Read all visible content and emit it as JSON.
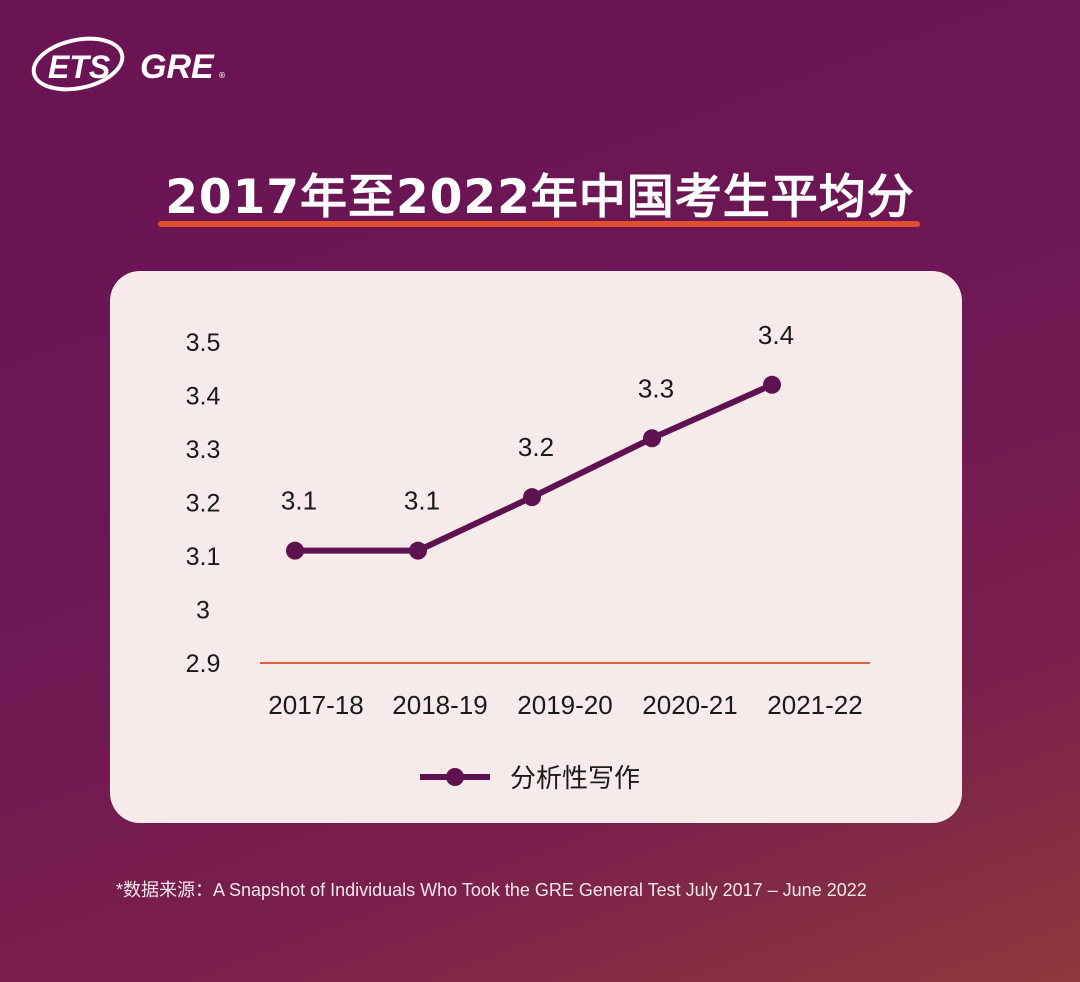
{
  "logo": {
    "brand": "ETS",
    "product": "GRE"
  },
  "title": "2017年至2022年中国考生平均分",
  "colors": {
    "line": "#5e1250",
    "baseline": "#e0603a",
    "underline": "#e0502e",
    "card": "#f6eaea"
  },
  "chart_data": {
    "type": "line",
    "title": "",
    "categories": [
      "2017-18",
      "2018-19",
      "2019-20",
      "2020-21",
      "2021-22"
    ],
    "series": [
      {
        "name": "分析性写作",
        "values": [
          3.11,
          3.11,
          3.21,
          3.32,
          3.42
        ],
        "labels": [
          "3.1",
          "3.1",
          "3.2",
          "3.3",
          "3.4"
        ]
      }
    ],
    "yticks": [
      "2.9",
      "3",
      "3.1",
      "3.2",
      "3.3",
      "3.4",
      "3.5"
    ],
    "ylim": [
      2.9,
      3.5
    ],
    "grid": false,
    "legend": "bottom"
  },
  "footer": "*数据来源：A Snapshot of Individuals Who Took the GRE General Test July 2017 – June 2022"
}
